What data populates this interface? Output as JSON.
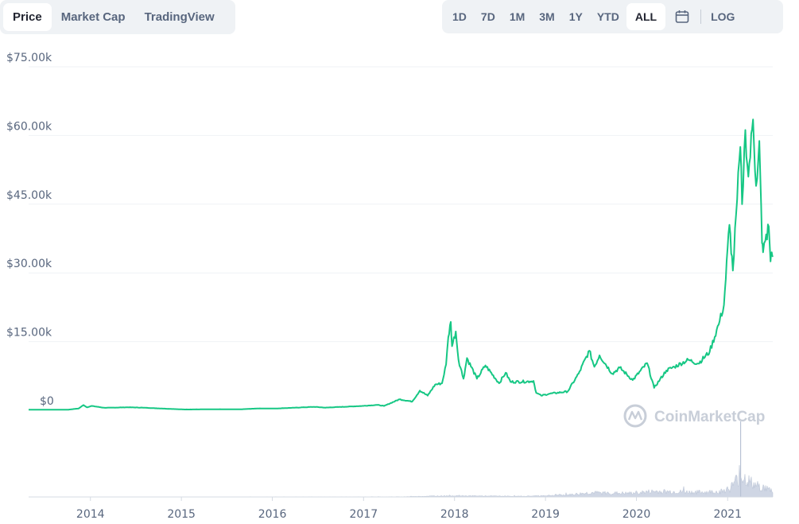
{
  "tabs": [
    {
      "label": "Price",
      "active": true
    },
    {
      "label": "Market Cap",
      "active": false
    },
    {
      "label": "TradingView",
      "active": false
    }
  ],
  "ranges": [
    {
      "label": "1D",
      "active": false
    },
    {
      "label": "7D",
      "active": false
    },
    {
      "label": "1M",
      "active": false
    },
    {
      "label": "3M",
      "active": false
    },
    {
      "label": "1Y",
      "active": false
    },
    {
      "label": "YTD",
      "active": false
    },
    {
      "label": "ALL",
      "active": true
    }
  ],
  "calendar_icon": "calendar-icon",
  "log_label": "LOG",
  "watermark": "CoinMarketCap",
  "colors": {
    "line": "#16c784",
    "volume": "#cfd6e4",
    "grid": "#eff2f5",
    "text": "#58667e"
  },
  "chart_data": {
    "type": "line",
    "title": "",
    "xlabel": "",
    "ylabel": "",
    "ylim": [
      0,
      75000
    ],
    "y_ticks": [
      {
        "value": 0,
        "label": "$0"
      },
      {
        "value": 15000,
        "label": "$15.00k"
      },
      {
        "value": 30000,
        "label": "$30.00k"
      },
      {
        "value": 45000,
        "label": "$45.00k"
      },
      {
        "value": 60000,
        "label": "$60.00k"
      },
      {
        "value": 75000,
        "label": "$75.00k"
      }
    ],
    "x_ticks": [
      "2014",
      "2015",
      "2016",
      "2017",
      "2018",
      "2019",
      "2020",
      "2021"
    ],
    "xlim": [
      "2013-04-28",
      "2021-07-01"
    ],
    "grid": true,
    "series": [
      {
        "values": [
          [
            "2013-04-28",
            135
          ],
          [
            "2013-10-01",
            125
          ],
          [
            "2013-11-15",
            400
          ],
          [
            "2013-12-04",
            1150
          ],
          [
            "2013-12-18",
            650
          ],
          [
            "2014-01-06",
            950
          ],
          [
            "2014-02-25",
            550
          ],
          [
            "2014-06-01",
            650
          ],
          [
            "2014-08-01",
            580
          ],
          [
            "2014-10-15",
            380
          ],
          [
            "2015-01-14",
            180
          ],
          [
            "2015-06-01",
            230
          ],
          [
            "2015-08-24",
            210
          ],
          [
            "2015-11-04",
            400
          ],
          [
            "2016-01-15",
            390
          ],
          [
            "2016-06-17",
            750
          ],
          [
            "2016-08-01",
            580
          ],
          [
            "2016-12-31",
            960
          ],
          [
            "2017-02-25",
            1180
          ],
          [
            "2017-03-24",
            940
          ],
          [
            "2017-05-25",
            2400
          ],
          [
            "2017-07-15",
            1900
          ],
          [
            "2017-08-15",
            4300
          ],
          [
            "2017-09-15",
            3200
          ],
          [
            "2017-10-15",
            5600
          ],
          [
            "2017-11-12",
            5900
          ],
          [
            "2017-11-28",
            10000
          ],
          [
            "2017-12-07",
            16000
          ],
          [
            "2017-12-17",
            19300
          ],
          [
            "2017-12-22",
            14000
          ],
          [
            "2018-01-06",
            17200
          ],
          [
            "2018-01-17",
            11000
          ],
          [
            "2018-02-06",
            6900
          ],
          [
            "2018-02-20",
            11400
          ],
          [
            "2018-04-01",
            6900
          ],
          [
            "2018-05-05",
            9800
          ],
          [
            "2018-06-29",
            5900
          ],
          [
            "2018-07-25",
            8200
          ],
          [
            "2018-08-14",
            6200
          ],
          [
            "2018-10-31",
            6300
          ],
          [
            "2018-11-14",
            6400
          ],
          [
            "2018-11-25",
            3800
          ],
          [
            "2018-12-15",
            3200
          ],
          [
            "2019-01-15",
            3600
          ],
          [
            "2019-03-31",
            4100
          ],
          [
            "2019-05-14",
            8000
          ],
          [
            "2019-06-26",
            13000
          ],
          [
            "2019-07-16",
            9500
          ],
          [
            "2019-08-06",
            12000
          ],
          [
            "2019-09-26",
            8000
          ],
          [
            "2019-10-26",
            9300
          ],
          [
            "2019-12-17",
            6600
          ],
          [
            "2020-02-13",
            10300
          ],
          [
            "2020-03-12",
            4900
          ],
          [
            "2020-04-30",
            8700
          ],
          [
            "2020-06-01",
            9500
          ],
          [
            "2020-07-27",
            11000
          ],
          [
            "2020-09-05",
            10200
          ],
          [
            "2020-10-21",
            12800
          ],
          [
            "2020-11-30",
            19500
          ],
          [
            "2020-12-17",
            23000
          ],
          [
            "2021-01-08",
            40500
          ],
          [
            "2021-01-22",
            30500
          ],
          [
            "2021-02-08",
            46000
          ],
          [
            "2021-02-21",
            57500
          ],
          [
            "2021-02-28",
            45000
          ],
          [
            "2021-03-13",
            61200
          ],
          [
            "2021-03-25",
            51000
          ],
          [
            "2021-04-13",
            63500
          ],
          [
            "2021-04-25",
            49000
          ],
          [
            "2021-05-08",
            58800
          ],
          [
            "2021-05-19",
            36500
          ],
          [
            "2021-05-23",
            34500
          ],
          [
            "2021-06-01",
            37000
          ],
          [
            "2021-06-15",
            40100
          ],
          [
            "2021-06-22",
            32500
          ],
          [
            "2021-06-27",
            34500
          ],
          [
            "2021-07-01",
            33500
          ]
        ]
      }
    ],
    "volume": {
      "note_unit": "relative",
      "values": [
        [
          "2013-04-28",
          0.0
        ],
        [
          "2017-06-01",
          0.01
        ],
        [
          "2017-12-15",
          0.06
        ],
        [
          "2018-03-01",
          0.05
        ],
        [
          "2018-10-01",
          0.03
        ],
        [
          "2019-04-01",
          0.1
        ],
        [
          "2019-07-01",
          0.2
        ],
        [
          "2019-12-01",
          0.17
        ],
        [
          "2020-03-12",
          0.26
        ],
        [
          "2020-09-01",
          0.22
        ],
        [
          "2020-12-01",
          0.25
        ],
        [
          "2021-01-10",
          0.4
        ],
        [
          "2021-02-22",
          1.0
        ],
        [
          "2021-04-18",
          0.55
        ],
        [
          "2021-05-19",
          0.45
        ],
        [
          "2021-07-01",
          0.3
        ]
      ]
    }
  }
}
